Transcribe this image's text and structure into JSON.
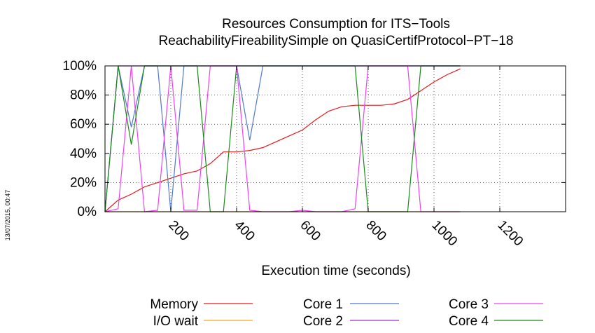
{
  "chart_data": {
    "type": "line",
    "title": [
      "Resources Consumption for ITS−Tools",
      "ReachabilityFireabilitySimple on QuasiCertifProtocol−PT−18"
    ],
    "xlabel": "Execution time (seconds)",
    "ylabel": "",
    "xlim": [
      0,
      1400
    ],
    "ylim": [
      0,
      100
    ],
    "xticks": [
      200,
      400,
      600,
      800,
      1000,
      1200
    ],
    "xtick_labels": [
      "200",
      "400",
      "600",
      "800",
      "1000",
      "1200"
    ],
    "yticks": [
      0,
      20,
      40,
      60,
      80,
      100
    ],
    "ytick_labels": [
      "0%",
      "20%",
      "40%",
      "60%",
      "80%",
      "100%"
    ],
    "grid": true,
    "legend_position": "bottom",
    "timestamp": "13/07/2015, 00:47",
    "series": [
      {
        "name": "Memory",
        "color": "#e41a1c",
        "points": [
          [
            0,
            0
          ],
          [
            40,
            8
          ],
          [
            80,
            12
          ],
          [
            120,
            17
          ],
          [
            160,
            20
          ],
          [
            200,
            23
          ],
          [
            240,
            26
          ],
          [
            280,
            28
          ],
          [
            320,
            33
          ],
          [
            360,
            41
          ],
          [
            400,
            41
          ],
          [
            440,
            42
          ],
          [
            480,
            44
          ],
          [
            520,
            48
          ],
          [
            560,
            52
          ],
          [
            600,
            56
          ],
          [
            640,
            63
          ],
          [
            680,
            69
          ],
          [
            720,
            72
          ],
          [
            760,
            73
          ],
          [
            800,
            73
          ],
          [
            840,
            73
          ],
          [
            880,
            74
          ],
          [
            920,
            77
          ],
          [
            960,
            83
          ],
          [
            1000,
            89
          ],
          [
            1040,
            94
          ],
          [
            1080,
            98
          ]
        ]
      },
      {
        "name": "Core 1",
        "color": "#4f78d0",
        "points": [
          [
            0,
            0
          ],
          [
            40,
            100
          ],
          [
            80,
            58
          ],
          [
            120,
            100
          ],
          [
            160,
            100
          ],
          [
            200,
            0
          ],
          [
            240,
            100
          ],
          [
            280,
            100
          ],
          [
            320,
            100
          ],
          [
            360,
            100
          ],
          [
            400,
            100
          ],
          [
            440,
            49
          ],
          [
            480,
            100
          ],
          [
            520,
            100
          ],
          [
            560,
            100
          ],
          [
            600,
            100
          ],
          [
            640,
            100
          ],
          [
            680,
            100
          ],
          [
            720,
            100
          ],
          [
            760,
            100
          ],
          [
            800,
            100
          ],
          [
            840,
            100
          ],
          [
            880,
            100
          ],
          [
            920,
            100
          ],
          [
            960,
            100
          ],
          [
            1000,
            100
          ],
          [
            1040,
            100
          ],
          [
            1080,
            100
          ]
        ]
      },
      {
        "name": "I/O wait",
        "color": "#f5a623",
        "points": [
          [
            0,
            0
          ],
          [
            1080,
            0
          ]
        ]
      },
      {
        "name": "Core 2",
        "color": "#9932cc",
        "points": [
          [
            0,
            0
          ],
          [
            40,
            100
          ],
          [
            1080,
            100
          ]
        ]
      },
      {
        "name": "Core 3",
        "color": "#ee42ee",
        "points": [
          [
            0,
            0
          ],
          [
            40,
            2
          ],
          [
            80,
            100
          ],
          [
            120,
            0
          ],
          [
            160,
            1
          ],
          [
            200,
            100
          ],
          [
            240,
            1
          ],
          [
            280,
            1
          ],
          [
            320,
            100
          ],
          [
            360,
            100
          ],
          [
            400,
            100
          ],
          [
            440,
            1
          ],
          [
            480,
            0
          ],
          [
            520,
            0
          ],
          [
            560,
            0
          ],
          [
            600,
            1
          ],
          [
            640,
            0
          ],
          [
            680,
            0
          ],
          [
            720,
            0
          ],
          [
            760,
            2
          ],
          [
            800,
            100
          ],
          [
            840,
            100
          ],
          [
            880,
            100
          ],
          [
            920,
            100
          ],
          [
            960,
            0
          ],
          [
            1000,
            0
          ],
          [
            1040,
            0
          ],
          [
            1080,
            0
          ]
        ]
      },
      {
        "name": "Core 4",
        "color": "#1a8a1a",
        "points": [
          [
            0,
            0
          ],
          [
            40,
            100
          ],
          [
            80,
            46
          ],
          [
            120,
            100
          ],
          [
            160,
            100
          ],
          [
            200,
            100
          ],
          [
            240,
            100
          ],
          [
            280,
            100
          ],
          [
            320,
            0
          ],
          [
            360,
            0
          ],
          [
            400,
            100
          ],
          [
            440,
            100
          ],
          [
            480,
            100
          ],
          [
            520,
            100
          ],
          [
            560,
            100
          ],
          [
            600,
            100
          ],
          [
            640,
            100
          ],
          [
            680,
            100
          ],
          [
            720,
            100
          ],
          [
            760,
            100
          ],
          [
            800,
            0
          ],
          [
            840,
            0
          ],
          [
            880,
            0
          ],
          [
            920,
            0
          ],
          [
            960,
            100
          ],
          [
            1000,
            100
          ],
          [
            1040,
            100
          ],
          [
            1080,
            100
          ]
        ]
      }
    ],
    "legend": [
      {
        "name": "Memory",
        "color": "#e41a1c"
      },
      {
        "name": "I/O wait",
        "color": "#f5a623"
      },
      {
        "name": "Core 1",
        "color": "#4f78d0"
      },
      {
        "name": "Core 2",
        "color": "#9932cc"
      },
      {
        "name": "Core 3",
        "color": "#ee42ee"
      },
      {
        "name": "Core 4",
        "color": "#1a8a1a"
      }
    ]
  }
}
